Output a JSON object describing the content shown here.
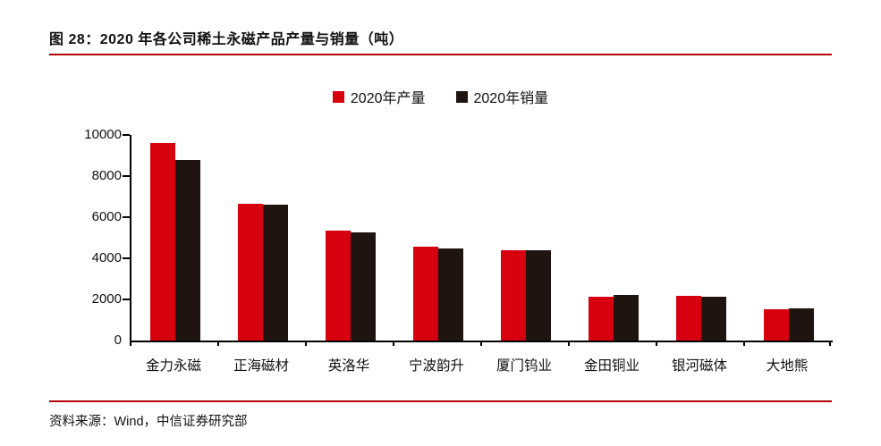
{
  "figure": {
    "title": "图 28：2020 年各公司稀土永磁产品产量与销量（吨）",
    "source": "资料来源：Wind，中信证券研究部"
  },
  "colors": {
    "production_bar": "#d7000f",
    "sales_bar": "#1f1410",
    "rule": "#b20000",
    "axis": "#000000"
  },
  "chart_data": {
    "type": "bar",
    "title": "2020 年各公司稀土永磁产品产量与销量（吨）",
    "categories": [
      "金力永磁",
      "正海磁材",
      "英洛华",
      "宁波韵升",
      "厦门钨业",
      "金田铜业",
      "银河磁体",
      "大地熊"
    ],
    "series": [
      {
        "name": "2020年产量",
        "key": "production",
        "color": "#d7000f",
        "values": [
          9600,
          6650,
          5330,
          4550,
          4400,
          2110,
          2180,
          1510
        ]
      },
      {
        "name": "2020年销量",
        "key": "sales",
        "color": "#1f1410",
        "values": [
          8800,
          6600,
          5250,
          4460,
          4380,
          2200,
          2150,
          1560
        ]
      }
    ],
    "xlabel": "",
    "ylabel": "",
    "ylim": [
      0,
      10000
    ],
    "yticks": [
      0,
      2000,
      4000,
      6000,
      8000,
      10000
    ],
    "grid": false,
    "legend_position": "top"
  }
}
